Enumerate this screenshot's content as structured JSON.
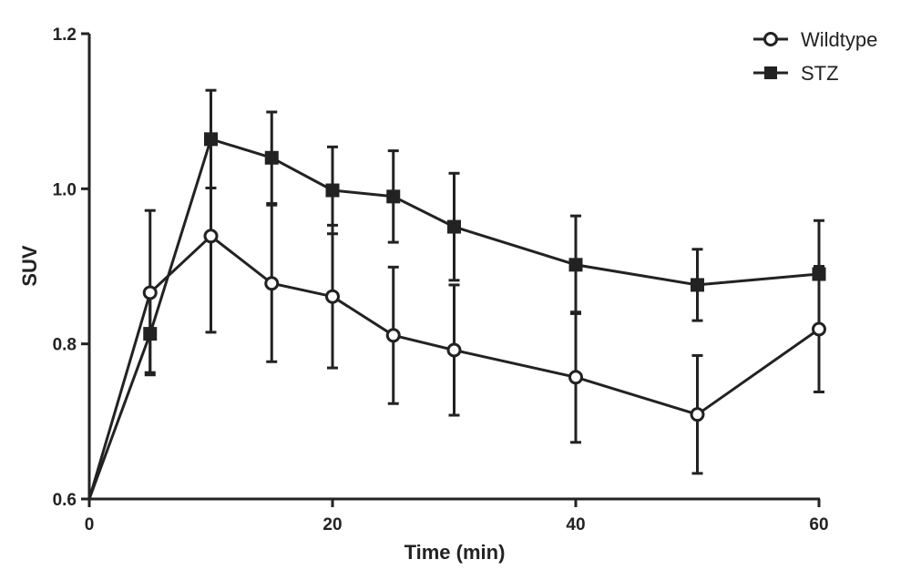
{
  "chart_data": {
    "type": "line",
    "title": "",
    "xlabel": "Time (min)",
    "ylabel": "SUV",
    "xlim": [
      0,
      60
    ],
    "ylim": [
      0.6,
      1.2
    ],
    "xticks": [
      0,
      20,
      40,
      60
    ],
    "yticks": [
      0.6,
      0.8,
      1.0,
      1.2
    ],
    "xtick_labels": [
      "0",
      "20",
      "40",
      "60"
    ],
    "ytick_labels": [
      "0.6",
      "0.8",
      "1.0",
      "1.2"
    ],
    "grid": false,
    "legend_position": "top-right",
    "x": [
      0,
      5,
      10,
      15,
      20,
      25,
      30,
      40,
      50,
      60
    ],
    "series": [
      {
        "name": "Wildtype",
        "marker": "open-circle",
        "color": "#222222",
        "values": [
          0.6,
          0.866,
          0.939,
          0.878,
          0.861,
          0.811,
          0.792,
          0.757,
          0.709,
          0.819
        ],
        "error": [
          0,
          0.106,
          0.124,
          0.101,
          0.092,
          0.088,
          0.084,
          0.084,
          0.076,
          0.081
        ]
      },
      {
        "name": "STZ",
        "marker": "filled-square",
        "color": "#222222",
        "values": [
          0.6,
          0.813,
          1.064,
          1.04,
          0.998,
          0.99,
          0.951,
          0.902,
          0.876,
          0.89
        ],
        "error": [
          0,
          0.05,
          0.063,
          0.059,
          0.056,
          0.059,
          0.069,
          0.063,
          0.046,
          0.069
        ]
      }
    ]
  }
}
